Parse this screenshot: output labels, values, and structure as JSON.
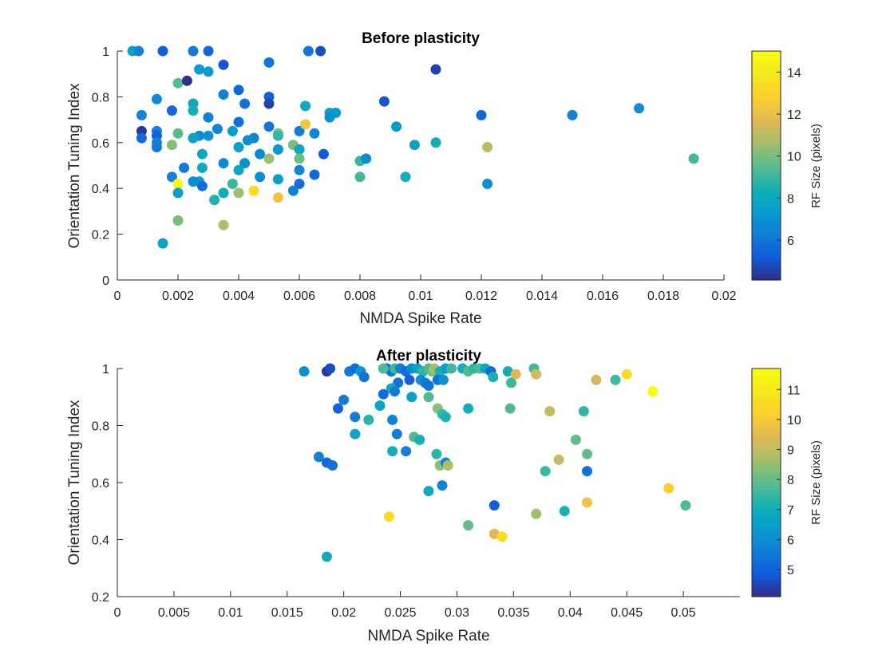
{
  "chart_data": [
    {
      "type": "scatter",
      "title": "Before plasticity",
      "xlabel": "NMDA Spike Rate",
      "ylabel": "Orientation Tuning Index",
      "xlim": [
        0,
        0.02
      ],
      "ylim": [
        0,
        1
      ],
      "xticks": [
        "0",
        "0.002",
        "0.004",
        "0.006",
        "0.008",
        "0.01",
        "0.012",
        "0.014",
        "0.016",
        "0.018",
        "0.02"
      ],
      "yticks": [
        "0",
        "0.2",
        "0.4",
        "0.6",
        "0.8",
        "1"
      ],
      "xtick_values": [
        0,
        0.002,
        0.004,
        0.006,
        0.008,
        0.01,
        0.012,
        0.014,
        0.016,
        0.018,
        0.02
      ],
      "ytick_values": [
        0,
        0.2,
        0.4,
        0.6,
        0.8,
        1
      ],
      "grid": false,
      "colorbar": {
        "label": "RF Size (pixels)",
        "range": [
          4.1,
          15
        ],
        "ticks": [
          "6",
          "8",
          "10",
          "12",
          "14"
        ],
        "tick_values": [
          6,
          8,
          10,
          12,
          14
        ]
      },
      "points": [
        {
          "x": 0.0005,
          "y": 1.0,
          "c": 7.6
        },
        {
          "x": 0.0007,
          "y": 1.0,
          "c": 6.6
        },
        {
          "x": 0.0015,
          "y": 1.0,
          "c": 5.2
        },
        {
          "x": 0.0025,
          "y": 1.0,
          "c": 6.2
        },
        {
          "x": 0.003,
          "y": 1.0,
          "c": 5.6
        },
        {
          "x": 0.0063,
          "y": 1.0,
          "c": 6.0
        },
        {
          "x": 0.0067,
          "y": 1.0,
          "c": 4.9
        },
        {
          "x": 0.0105,
          "y": 0.92,
          "c": 4.6
        },
        {
          "x": 0.0035,
          "y": 0.94,
          "c": 5.0
        },
        {
          "x": 0.005,
          "y": 0.95,
          "c": 6.0
        },
        {
          "x": 0.0027,
          "y": 0.92,
          "c": 7.3
        },
        {
          "x": 0.003,
          "y": 0.91,
          "c": 7.4
        },
        {
          "x": 0.002,
          "y": 0.86,
          "c": 9.5
        },
        {
          "x": 0.0023,
          "y": 0.87,
          "c": 4.2
        },
        {
          "x": 0.004,
          "y": 0.83,
          "c": 5.6
        },
        {
          "x": 0.0035,
          "y": 0.81,
          "c": 6.5
        },
        {
          "x": 0.005,
          "y": 0.8,
          "c": 5.5
        },
        {
          "x": 0.005,
          "y": 0.77,
          "c": 4.6
        },
        {
          "x": 0.0042,
          "y": 0.77,
          "c": 5.8
        },
        {
          "x": 0.0013,
          "y": 0.79,
          "c": 6.8
        },
        {
          "x": 0.0025,
          "y": 0.77,
          "c": 8.0
        },
        {
          "x": 0.0025,
          "y": 0.74,
          "c": 8.4
        },
        {
          "x": 0.0018,
          "y": 0.74,
          "c": 5.6
        },
        {
          "x": 0.003,
          "y": 0.71,
          "c": 6.4
        },
        {
          "x": 0.0008,
          "y": 0.72,
          "c": 6.6
        },
        {
          "x": 0.004,
          "y": 0.69,
          "c": 5.8
        },
        {
          "x": 0.0033,
          "y": 0.66,
          "c": 6.6
        },
        {
          "x": 0.0027,
          "y": 0.63,
          "c": 6.8
        },
        {
          "x": 0.003,
          "y": 0.63,
          "c": 7.0
        },
        {
          "x": 0.0008,
          "y": 0.65,
          "c": 4.4
        },
        {
          "x": 0.0013,
          "y": 0.65,
          "c": 6.4
        },
        {
          "x": 0.002,
          "y": 0.64,
          "c": 9.5
        },
        {
          "x": 0.0013,
          "y": 0.63,
          "c": 5.4
        },
        {
          "x": 0.0008,
          "y": 0.62,
          "c": 5.6
        },
        {
          "x": 0.0013,
          "y": 0.6,
          "c": 6.5
        },
        {
          "x": 0.0013,
          "y": 0.58,
          "c": 6.2
        },
        {
          "x": 0.0018,
          "y": 0.59,
          "c": 10.2
        },
        {
          "x": 0.0025,
          "y": 0.62,
          "c": 7.6
        },
        {
          "x": 0.0038,
          "y": 0.65,
          "c": 7.4
        },
        {
          "x": 0.0045,
          "y": 0.62,
          "c": 6.6
        },
        {
          "x": 0.005,
          "y": 0.67,
          "c": 6.0
        },
        {
          "x": 0.0053,
          "y": 0.64,
          "c": 10.0
        },
        {
          "x": 0.0053,
          "y": 0.63,
          "c": 8.9
        },
        {
          "x": 0.006,
          "y": 0.65,
          "c": 6.2
        },
        {
          "x": 0.0062,
          "y": 0.68,
          "c": 12.4
        },
        {
          "x": 0.0065,
          "y": 0.64,
          "c": 6.6
        },
        {
          "x": 0.0062,
          "y": 0.76,
          "c": 8.0
        },
        {
          "x": 0.007,
          "y": 0.73,
          "c": 7.6
        },
        {
          "x": 0.0072,
          "y": 0.73,
          "c": 7.2
        },
        {
          "x": 0.007,
          "y": 0.71,
          "c": 7.0
        },
        {
          "x": 0.0088,
          "y": 0.78,
          "c": 5.0
        },
        {
          "x": 0.0028,
          "y": 0.55,
          "c": 8.0
        },
        {
          "x": 0.004,
          "y": 0.58,
          "c": 7.6
        },
        {
          "x": 0.0043,
          "y": 0.61,
          "c": 6.8
        },
        {
          "x": 0.0047,
          "y": 0.55,
          "c": 6.8
        },
        {
          "x": 0.0053,
          "y": 0.57,
          "c": 7.2
        },
        {
          "x": 0.0058,
          "y": 0.59,
          "c": 10.0
        },
        {
          "x": 0.006,
          "y": 0.57,
          "c": 7.8
        },
        {
          "x": 0.0068,
          "y": 0.55,
          "c": 5.2
        },
        {
          "x": 0.0028,
          "y": 0.49,
          "c": 8.0
        },
        {
          "x": 0.0022,
          "y": 0.49,
          "c": 6.2
        },
        {
          "x": 0.0018,
          "y": 0.45,
          "c": 6.4
        },
        {
          "x": 0.0042,
          "y": 0.51,
          "c": 7.0
        },
        {
          "x": 0.0035,
          "y": 0.51,
          "c": 6.8
        },
        {
          "x": 0.004,
          "y": 0.48,
          "c": 7.8
        },
        {
          "x": 0.0047,
          "y": 0.45,
          "c": 6.8
        },
        {
          "x": 0.005,
          "y": 0.53,
          "c": 10.5
        },
        {
          "x": 0.006,
          "y": 0.53,
          "c": 9.8
        },
        {
          "x": 0.006,
          "y": 0.48,
          "c": 6.6
        },
        {
          "x": 0.0065,
          "y": 0.46,
          "c": 5.6
        },
        {
          "x": 0.0053,
          "y": 0.44,
          "c": 7.6
        },
        {
          "x": 0.0027,
          "y": 0.43,
          "c": 7.4
        },
        {
          "x": 0.0025,
          "y": 0.43,
          "c": 7.0
        },
        {
          "x": 0.002,
          "y": 0.42,
          "c": 15.0
        },
        {
          "x": 0.0028,
          "y": 0.41,
          "c": 5.8
        },
        {
          "x": 0.0038,
          "y": 0.42,
          "c": 9.0
        },
        {
          "x": 0.006,
          "y": 0.42,
          "c": 5.8
        },
        {
          "x": 0.0045,
          "y": 0.39,
          "c": 13.4
        },
        {
          "x": 0.0058,
          "y": 0.39,
          "c": 6.4
        },
        {
          "x": 0.002,
          "y": 0.38,
          "c": 7.6
        },
        {
          "x": 0.004,
          "y": 0.38,
          "c": 10.6
        },
        {
          "x": 0.0035,
          "y": 0.38,
          "c": 8.2
        },
        {
          "x": 0.0032,
          "y": 0.35,
          "c": 8.6
        },
        {
          "x": 0.0053,
          "y": 0.36,
          "c": 12.3
        },
        {
          "x": 0.008,
          "y": 0.52,
          "c": 9.0
        },
        {
          "x": 0.0082,
          "y": 0.53,
          "c": 6.8
        },
        {
          "x": 0.008,
          "y": 0.45,
          "c": 9.2
        },
        {
          "x": 0.0095,
          "y": 0.45,
          "c": 8.2
        },
        {
          "x": 0.0092,
          "y": 0.67,
          "c": 7.2
        },
        {
          "x": 0.0098,
          "y": 0.59,
          "c": 7.6
        },
        {
          "x": 0.0105,
          "y": 0.6,
          "c": 8.2
        },
        {
          "x": 0.012,
          "y": 0.72,
          "c": 5.6
        },
        {
          "x": 0.0122,
          "y": 0.58,
          "c": 11.0
        },
        {
          "x": 0.0122,
          "y": 0.42,
          "c": 7.0
        },
        {
          "x": 0.015,
          "y": 0.72,
          "c": 6.4
        },
        {
          "x": 0.0172,
          "y": 0.75,
          "c": 6.8
        },
        {
          "x": 0.019,
          "y": 0.53,
          "c": 9.2
        },
        {
          "x": 0.002,
          "y": 0.26,
          "c": 10.0
        },
        {
          "x": 0.0035,
          "y": 0.24,
          "c": 10.8
        },
        {
          "x": 0.0015,
          "y": 0.16,
          "c": 7.6
        }
      ]
    },
    {
      "type": "scatter",
      "title": "After plasticity",
      "xlabel": "NMDA Spike Rate",
      "ylabel": "Orientation Tuning Index",
      "xlim": [
        0,
        0.055
      ],
      "ylim": [
        0.2,
        1
      ],
      "xticks": [
        "0",
        "0.005",
        "0.01",
        "0.015",
        "0.02",
        "0.025",
        "0.03",
        "0.035",
        "0.04",
        "0.045",
        "0.05"
      ],
      "yticks": [
        "0.2",
        "0.4",
        "0.6",
        "0.8",
        "1"
      ],
      "xtick_values": [
        0,
        0.005,
        0.01,
        0.015,
        0.02,
        0.025,
        0.03,
        0.035,
        0.04,
        0.045,
        0.05
      ],
      "ytick_values": [
        0.2,
        0.4,
        0.6,
        0.8,
        1
      ],
      "grid": false,
      "colorbar": {
        "label": "RF Size (pixels)",
        "range": [
          4.1,
          11.7
        ],
        "ticks": [
          "5",
          "6",
          "7",
          "8",
          "9",
          "10",
          "11"
        ],
        "tick_values": [
          5,
          6,
          7,
          8,
          9,
          10,
          11
        ]
      },
      "points": [
        {
          "x": 0.0165,
          "y": 0.99,
          "c": 6.0
        },
        {
          "x": 0.0185,
          "y": 0.99,
          "c": 4.3
        },
        {
          "x": 0.0188,
          "y": 1.0,
          "c": 4.6
        },
        {
          "x": 0.0205,
          "y": 0.99,
          "c": 5.6
        },
        {
          "x": 0.021,
          "y": 1.0,
          "c": 5.2
        },
        {
          "x": 0.0215,
          "y": 0.99,
          "c": 6.2
        },
        {
          "x": 0.0238,
          "y": 1.0,
          "c": 5.0
        },
        {
          "x": 0.0242,
          "y": 0.99,
          "c": 5.4
        },
        {
          "x": 0.0245,
          "y": 1.0,
          "c": 7.6
        },
        {
          "x": 0.0235,
          "y": 1.0,
          "c": 7.8
        },
        {
          "x": 0.025,
          "y": 1.0,
          "c": 5.6
        },
        {
          "x": 0.0255,
          "y": 0.99,
          "c": 5.2
        },
        {
          "x": 0.026,
          "y": 1.0,
          "c": 6.0
        },
        {
          "x": 0.0265,
          "y": 1.0,
          "c": 6.6
        },
        {
          "x": 0.027,
          "y": 0.99,
          "c": 7.4
        },
        {
          "x": 0.0275,
          "y": 1.0,
          "c": 7.8
        },
        {
          "x": 0.0278,
          "y": 0.99,
          "c": 8.2
        },
        {
          "x": 0.028,
          "y": 1.0,
          "c": 8.6
        },
        {
          "x": 0.0285,
          "y": 0.99,
          "c": 7.2
        },
        {
          "x": 0.029,
          "y": 1.0,
          "c": 6.4
        },
        {
          "x": 0.0295,
          "y": 1.0,
          "c": 7.6
        },
        {
          "x": 0.0305,
          "y": 1.0,
          "c": 7.0
        },
        {
          "x": 0.031,
          "y": 0.99,
          "c": 7.8
        },
        {
          "x": 0.0315,
          "y": 1.0,
          "c": 7.4
        },
        {
          "x": 0.032,
          "y": 1.0,
          "c": 7.8
        },
        {
          "x": 0.0325,
          "y": 1.0,
          "c": 6.8
        },
        {
          "x": 0.033,
          "y": 0.99,
          "c": 5.2
        },
        {
          "x": 0.0345,
          "y": 0.99,
          "c": 7.0
        },
        {
          "x": 0.0352,
          "y": 0.98,
          "c": 9.4
        },
        {
          "x": 0.0368,
          "y": 1.0,
          "c": 7.6
        },
        {
          "x": 0.037,
          "y": 0.98,
          "c": 9.2
        },
        {
          "x": 0.0218,
          "y": 0.97,
          "c": 5.4
        },
        {
          "x": 0.0248,
          "y": 0.95,
          "c": 5.4
        },
        {
          "x": 0.0242,
          "y": 0.93,
          "c": 6.8
        },
        {
          "x": 0.0245,
          "y": 0.92,
          "c": 5.6
        },
        {
          "x": 0.0235,
          "y": 0.91,
          "c": 5.2
        },
        {
          "x": 0.0258,
          "y": 0.96,
          "c": 5.0
        },
        {
          "x": 0.0268,
          "y": 0.96,
          "c": 6.0
        },
        {
          "x": 0.0272,
          "y": 0.95,
          "c": 5.6
        },
        {
          "x": 0.0283,
          "y": 0.96,
          "c": 5.4
        },
        {
          "x": 0.0288,
          "y": 0.96,
          "c": 6.2
        },
        {
          "x": 0.0275,
          "y": 0.94,
          "c": 5.4
        },
        {
          "x": 0.0332,
          "y": 0.97,
          "c": 7.2
        },
        {
          "x": 0.0348,
          "y": 0.95,
          "c": 7.6
        },
        {
          "x": 0.0423,
          "y": 0.96,
          "c": 9.2
        },
        {
          "x": 0.044,
          "y": 0.96,
          "c": 7.6
        },
        {
          "x": 0.045,
          "y": 0.98,
          "c": 10.6
        },
        {
          "x": 0.0473,
          "y": 0.92,
          "c": 11.7
        },
        {
          "x": 0.02,
          "y": 0.89,
          "c": 5.6
        },
        {
          "x": 0.026,
          "y": 0.9,
          "c": 6.4
        },
        {
          "x": 0.0275,
          "y": 0.9,
          "c": 7.8
        },
        {
          "x": 0.0195,
          "y": 0.86,
          "c": 5.0
        },
        {
          "x": 0.021,
          "y": 0.83,
          "c": 5.6
        },
        {
          "x": 0.0222,
          "y": 0.82,
          "c": 7.4
        },
        {
          "x": 0.0232,
          "y": 0.87,
          "c": 6.6
        },
        {
          "x": 0.0243,
          "y": 0.82,
          "c": 5.8
        },
        {
          "x": 0.0283,
          "y": 0.86,
          "c": 8.4
        },
        {
          "x": 0.0287,
          "y": 0.84,
          "c": 7.6
        },
        {
          "x": 0.029,
          "y": 0.83,
          "c": 7.2
        },
        {
          "x": 0.031,
          "y": 0.86,
          "c": 7.0
        },
        {
          "x": 0.0347,
          "y": 0.86,
          "c": 7.8
        },
        {
          "x": 0.0382,
          "y": 0.85,
          "c": 9.0
        },
        {
          "x": 0.0412,
          "y": 0.85,
          "c": 7.4
        },
        {
          "x": 0.021,
          "y": 0.77,
          "c": 6.6
        },
        {
          "x": 0.0247,
          "y": 0.77,
          "c": 5.6
        },
        {
          "x": 0.0262,
          "y": 0.76,
          "c": 7.8
        },
        {
          "x": 0.0267,
          "y": 0.75,
          "c": 7.2
        },
        {
          "x": 0.0243,
          "y": 0.71,
          "c": 7.0
        },
        {
          "x": 0.0255,
          "y": 0.71,
          "c": 5.6
        },
        {
          "x": 0.0405,
          "y": 0.75,
          "c": 8.0
        },
        {
          "x": 0.0178,
          "y": 0.69,
          "c": 5.8
        },
        {
          "x": 0.0185,
          "y": 0.67,
          "c": 5.2
        },
        {
          "x": 0.019,
          "y": 0.66,
          "c": 5.4
        },
        {
          "x": 0.0282,
          "y": 0.7,
          "c": 7.4
        },
        {
          "x": 0.0285,
          "y": 0.66,
          "c": 8.4
        },
        {
          "x": 0.029,
          "y": 0.67,
          "c": 5.8
        },
        {
          "x": 0.0292,
          "y": 0.66,
          "c": 8.8
        },
        {
          "x": 0.0378,
          "y": 0.64,
          "c": 7.6
        },
        {
          "x": 0.039,
          "y": 0.68,
          "c": 9.0
        },
        {
          "x": 0.0415,
          "y": 0.7,
          "c": 8.0
        },
        {
          "x": 0.0415,
          "y": 0.64,
          "c": 5.4
        },
        {
          "x": 0.0275,
          "y": 0.57,
          "c": 6.8
        },
        {
          "x": 0.0287,
          "y": 0.59,
          "c": 5.8
        },
        {
          "x": 0.0333,
          "y": 0.52,
          "c": 5.0
        },
        {
          "x": 0.037,
          "y": 0.49,
          "c": 8.6
        },
        {
          "x": 0.0395,
          "y": 0.5,
          "c": 7.2
        },
        {
          "x": 0.0415,
          "y": 0.53,
          "c": 9.8
        },
        {
          "x": 0.0487,
          "y": 0.58,
          "c": 10.2
        },
        {
          "x": 0.0502,
          "y": 0.52,
          "c": 7.8
        },
        {
          "x": 0.024,
          "y": 0.48,
          "c": 10.6
        },
        {
          "x": 0.031,
          "y": 0.45,
          "c": 8.0
        },
        {
          "x": 0.0333,
          "y": 0.42,
          "c": 9.4
        },
        {
          "x": 0.034,
          "y": 0.41,
          "c": 10.6
        },
        {
          "x": 0.0185,
          "y": 0.34,
          "c": 7.0
        }
      ]
    }
  ]
}
